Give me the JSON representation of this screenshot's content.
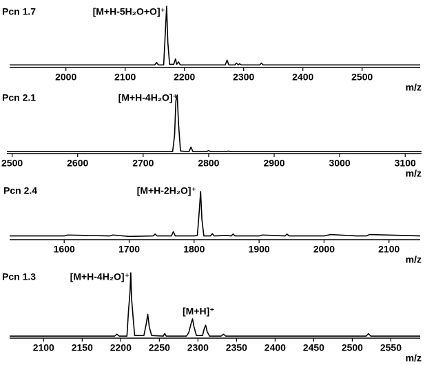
{
  "chart_data": [
    {
      "type": "line",
      "title": "Pcn 1.7",
      "annotations": [
        "[M+H-5H₂O+O]⁺"
      ],
      "x_label": "m/z",
      "color": "#000000",
      "xlim": [
        1905,
        2598
      ],
      "xticks": [
        2000,
        2100,
        2200,
        2300,
        2400,
        2500
      ],
      "ylim": [
        0,
        100
      ],
      "x": [
        1905,
        2150,
        2153,
        2156,
        2165,
        2168,
        2170,
        2172,
        2175,
        2182,
        2185,
        2187,
        2190,
        2193,
        2269,
        2272,
        2275,
        2285,
        2288,
        2291,
        2293,
        2296,
        2327,
        2330,
        2333,
        2598
      ],
      "values": [
        2,
        2,
        6,
        2,
        2,
        60,
        100,
        40,
        3,
        3,
        12,
        3,
        7,
        2,
        2,
        10,
        2,
        2,
        5,
        2,
        4,
        2,
        2,
        5,
        2,
        2
      ]
    },
    {
      "type": "line",
      "title": "Pcn 2.1",
      "annotations": [
        "[M+H-4H₂O]⁺"
      ],
      "x_label": "m/z",
      "color": "#000000",
      "xlim": [
        2492,
        3125
      ],
      "xticks": [
        2500,
        2600,
        2700,
        2800,
        2900,
        3000,
        3100
      ],
      "ylim": [
        0,
        100
      ],
      "x": [
        2492,
        2745,
        2748,
        2750,
        2752,
        2754,
        2757,
        2770,
        2773,
        2776,
        2797,
        2800,
        2803,
        2827,
        2830,
        2833,
        3125
      ],
      "values": [
        1,
        1,
        30,
        90,
        100,
        50,
        2,
        1,
        9,
        1,
        1,
        3,
        1,
        1,
        2,
        1,
        1
      ]
    },
    {
      "type": "line",
      "title": "Pcn 2.4",
      "annotations": [
        "[M+H-2H₂O]⁺"
      ],
      "x_label": "m/z",
      "color": "#000000",
      "xlim": [
        1516,
        2148
      ],
      "xticks": [
        1600,
        1700,
        1800,
        1900,
        2000,
        2100
      ],
      "ylim": [
        0,
        100
      ],
      "x": [
        1516,
        1600,
        1605,
        1670,
        1675,
        1700,
        1737,
        1740,
        1743,
        1765,
        1768,
        1771,
        1800,
        1805,
        1808,
        1810,
        1812,
        1815,
        1825,
        1828,
        1831,
        1850,
        1857,
        1860,
        1863,
        1900,
        1905,
        1940,
        1943,
        1946,
        2000,
        2010,
        2050,
        2065,
        2070,
        2148
      ],
      "values": [
        5,
        5,
        7,
        5,
        7,
        4,
        5,
        9,
        5,
        5,
        14,
        5,
        5,
        6,
        60,
        100,
        40,
        5,
        5,
        10,
        5,
        6,
        5,
        9,
        5,
        5,
        7,
        5,
        9,
        5,
        5,
        8,
        5,
        5,
        8,
        5
      ]
    },
    {
      "type": "line",
      "title": "Pcn 1.3",
      "annotations": [
        "[M+H-4H₂O]⁺",
        "[M+H]⁺"
      ],
      "x_label": "m/z",
      "color": "#000000",
      "xlim": [
        2056,
        2588
      ],
      "xticks": [
        2100,
        2150,
        2200,
        2250,
        2300,
        2350,
        2400,
        2450,
        2500,
        2550
      ],
      "ylim": [
        0,
        100
      ],
      "x": [
        2056,
        2192,
        2195,
        2198,
        2208,
        2210,
        2212,
        2213,
        2214,
        2216,
        2218,
        2230,
        2233,
        2235,
        2237,
        2240,
        2255,
        2257,
        2259,
        2285,
        2288,
        2291,
        2293,
        2295,
        2298,
        2306,
        2308,
        2310,
        2312,
        2315,
        2330,
        2333,
        2336,
        2518,
        2521,
        2524,
        2588
      ],
      "values": [
        1,
        1,
        4,
        1,
        1,
        40,
        70,
        100,
        60,
        30,
        2,
        2,
        20,
        35,
        15,
        2,
        1,
        5,
        1,
        1,
        6,
        20,
        28,
        15,
        2,
        2,
        12,
        18,
        8,
        1,
        1,
        4,
        1,
        1,
        5,
        1,
        1
      ]
    }
  ]
}
